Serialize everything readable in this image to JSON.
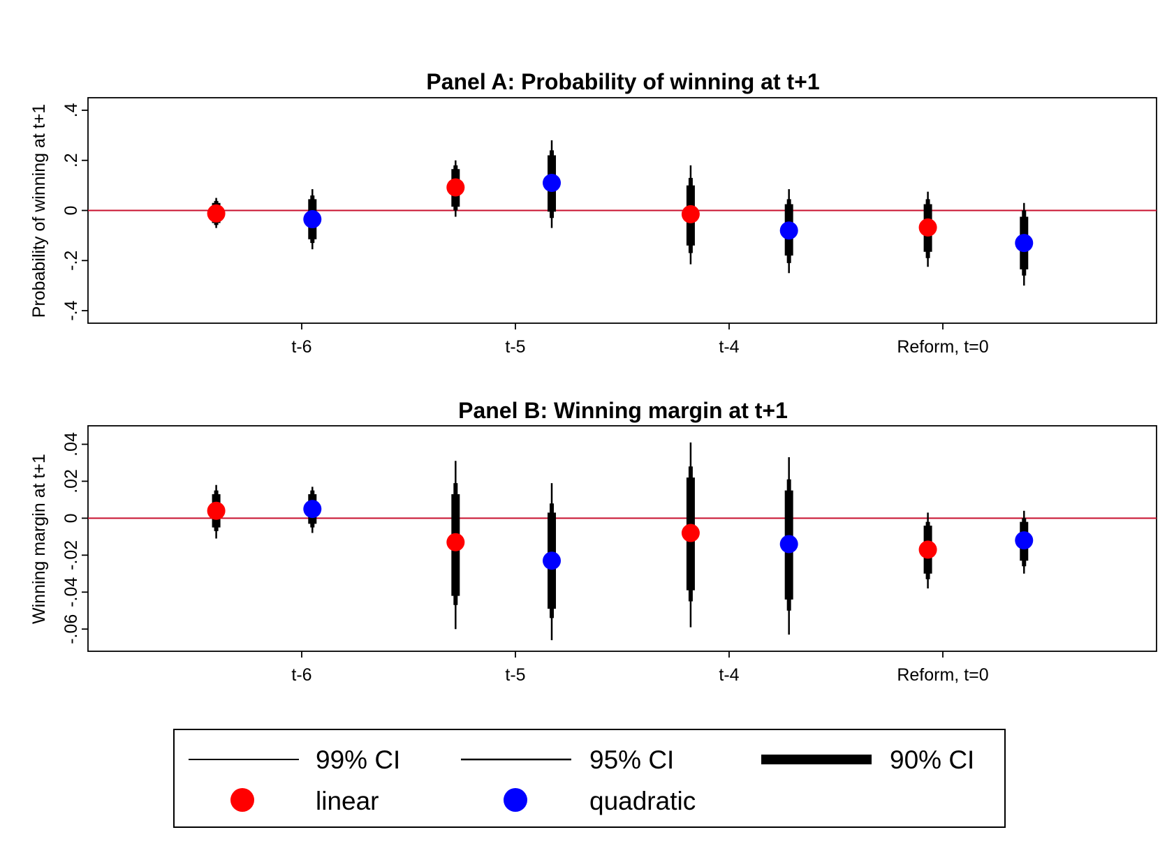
{
  "chart_data": [
    {
      "type": "scatter",
      "title": "Panel A: Probability of winning at t+1",
      "ylabel": "Probability of winning at t+1",
      "ylim": [
        -0.45,
        0.45
      ],
      "yticks": [
        -0.4,
        -0.2,
        0,
        0.2,
        0.4
      ],
      "ytick_labels": [
        "-.4",
        "-.2",
        "0",
        ".2",
        ".4"
      ],
      "categories": [
        "t-6",
        "t-5",
        "t-4",
        "Reform, t=0"
      ],
      "reference_line": 0,
      "reference_color": "#c8102e",
      "series": [
        {
          "name": "linear",
          "color": "#ff0000",
          "points": [
            {
              "x": 0.6,
              "y": -0.012,
              "ci99": [
                -0.07,
                0.05
              ],
              "ci95": [
                -0.058,
                0.038
              ],
              "ci90": [
                -0.05,
                0.03
              ]
            },
            {
              "x": 1.72,
              "y": 0.092,
              "ci99": [
                -0.025,
                0.2
              ],
              "ci95": [
                0.0,
                0.18
              ],
              "ci90": [
                0.015,
                0.165
              ]
            },
            {
              "x": 2.82,
              "y": -0.015,
              "ci99": [
                -0.215,
                0.18
              ],
              "ci95": [
                -0.17,
                0.13
              ],
              "ci90": [
                -0.14,
                0.1
              ]
            },
            {
              "x": 3.93,
              "y": -0.068,
              "ci99": [
                -0.225,
                0.075
              ],
              "ci95": [
                -0.19,
                0.045
              ],
              "ci90": [
                -0.165,
                0.025
              ]
            }
          ]
        },
        {
          "name": "quadratic",
          "color": "#0000ff",
          "points": [
            {
              "x": 1.05,
              "y": -0.035,
              "ci99": [
                -0.155,
                0.085
              ],
              "ci95": [
                -0.13,
                0.06
              ],
              "ci90": [
                -0.115,
                0.045
              ]
            },
            {
              "x": 2.17,
              "y": 0.11,
              "ci99": [
                -0.07,
                0.28
              ],
              "ci95": [
                -0.03,
                0.24
              ],
              "ci90": [
                -0.005,
                0.22
              ]
            },
            {
              "x": 3.28,
              "y": -0.08,
              "ci99": [
                -0.25,
                0.085
              ],
              "ci95": [
                -0.21,
                0.045
              ],
              "ci90": [
                -0.18,
                0.025
              ]
            },
            {
              "x": 4.38,
              "y": -0.13,
              "ci99": [
                -0.3,
                0.03
              ],
              "ci95": [
                -0.26,
                0.0
              ],
              "ci90": [
                -0.235,
                -0.025
              ]
            }
          ]
        }
      ]
    },
    {
      "type": "scatter",
      "title": "Panel B: Winning margin at t+1",
      "ylabel": "Winning margin at t+1",
      "ylim": [
        -0.072,
        0.05
      ],
      "yticks": [
        -0.06,
        -0.04,
        -0.02,
        0,
        0.02,
        0.04
      ],
      "ytick_labels": [
        "-.06",
        "-.04",
        "-.02",
        "0",
        ".02",
        ".04"
      ],
      "categories": [
        "t-6",
        "t-5",
        "t-4",
        "Reform, t=0"
      ],
      "reference_line": 0,
      "reference_color": "#c8102e",
      "series": [
        {
          "name": "linear",
          "color": "#ff0000",
          "points": [
            {
              "x": 0.6,
              "y": 0.004,
              "ci99": [
                -0.011,
                0.018
              ],
              "ci95": [
                -0.007,
                0.015
              ],
              "ci90": [
                -0.005,
                0.013
              ]
            },
            {
              "x": 1.72,
              "y": -0.013,
              "ci99": [
                -0.06,
                0.031
              ],
              "ci95": [
                -0.047,
                0.019
              ],
              "ci90": [
                -0.042,
                0.013
              ]
            },
            {
              "x": 2.82,
              "y": -0.008,
              "ci99": [
                -0.059,
                0.041
              ],
              "ci95": [
                -0.045,
                0.028
              ],
              "ci90": [
                -0.039,
                0.022
              ]
            },
            {
              "x": 3.93,
              "y": -0.017,
              "ci99": [
                -0.038,
                0.003
              ],
              "ci95": [
                -0.033,
                -0.002
              ],
              "ci90": [
                -0.03,
                -0.004
              ]
            }
          ]
        },
        {
          "name": "quadratic",
          "color": "#0000ff",
          "points": [
            {
              "x": 1.05,
              "y": 0.005,
              "ci99": [
                -0.008,
                0.017
              ],
              "ci95": [
                -0.005,
                0.015
              ],
              "ci90": [
                -0.003,
                0.013
              ]
            },
            {
              "x": 2.17,
              "y": -0.023,
              "ci99": [
                -0.066,
                0.019
              ],
              "ci95": [
                -0.054,
                0.008
              ],
              "ci90": [
                -0.049,
                0.003
              ]
            },
            {
              "x": 3.28,
              "y": -0.014,
              "ci99": [
                -0.063,
                0.033
              ],
              "ci95": [
                -0.05,
                0.021
              ],
              "ci90": [
                -0.044,
                0.015
              ]
            },
            {
              "x": 4.38,
              "y": -0.012,
              "ci99": [
                -0.03,
                0.004
              ],
              "ci95": [
                -0.026,
                0.0
              ],
              "ci90": [
                -0.023,
                -0.002
              ]
            }
          ]
        }
      ]
    }
  ],
  "legend": {
    "items": [
      {
        "label": "99% CI",
        "kind": "line-thin"
      },
      {
        "label": "95% CI",
        "kind": "line-medium"
      },
      {
        "label": "90% CI",
        "kind": "line-thick"
      },
      {
        "label": "linear",
        "kind": "dot",
        "color": "#ff0000"
      },
      {
        "label": "quadratic",
        "kind": "dot",
        "color": "#0000ff"
      }
    ]
  }
}
